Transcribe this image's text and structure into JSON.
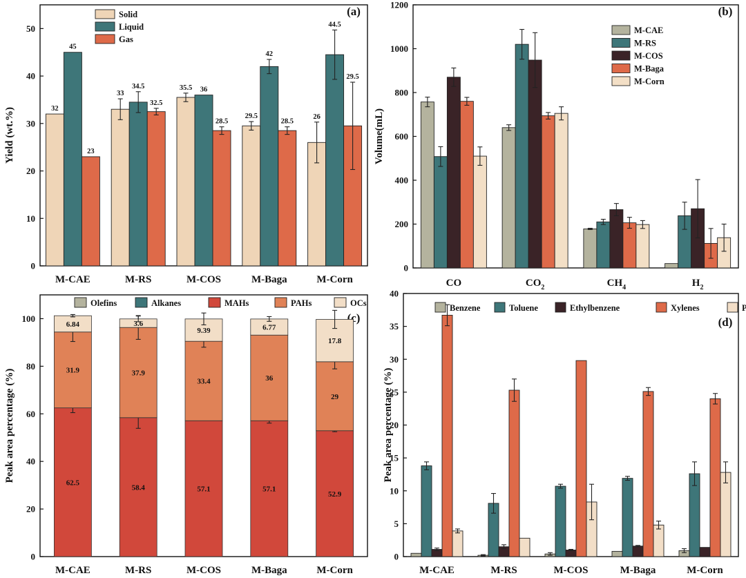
{
  "figure_title": "",
  "colors": {
    "solid": "#efd5b7",
    "liquid": "#3e7679",
    "gas": "#de6a49",
    "cae": "#b4b39e",
    "rs": "#3e7679",
    "cos": "#3a2327",
    "baga": "#de6a49",
    "corn": "#f3dfc6",
    "olefins": "#b4b39e",
    "alkanes": "#3e7679",
    "mahs": "#d1483b",
    "pahs": "#e08257",
    "ocs": "#f2dec7",
    "benzene": "#b4b39e",
    "toluene": "#3e7679",
    "ethylbenzene": "#3a2327",
    "xylenes": "#de6a49",
    "phenols": "#f2dec7",
    "axis": "#111111",
    "error": "#222222"
  },
  "chart_data": [
    {
      "id": "a",
      "panel_label": "(a)",
      "type": "bar",
      "title": "",
      "xlabel": "",
      "ylabel": "Yield (wt.%)",
      "ylim": [
        0,
        55
      ],
      "yticks": [
        "0",
        "10",
        "20",
        "30",
        "40",
        "50"
      ],
      "ytick_values": [
        0,
        10,
        20,
        30,
        40,
        50
      ],
      "categories": [
        "M-CAE",
        "M-RS",
        "M-COS",
        "M-Baga",
        "M-Corn"
      ],
      "legend_position": "top-center",
      "series": [
        {
          "name": "Solid",
          "color_key": "solid",
          "values": [
            32,
            33,
            35.5,
            29.5,
            26
          ],
          "errors": [
            0,
            2.2,
            0.9,
            0.9,
            4.3
          ],
          "labels": [
            "32",
            "33",
            "35.5",
            "29.5",
            "26"
          ]
        },
        {
          "name": "Liquid",
          "color_key": "liquid",
          "values": [
            45,
            34.5,
            36,
            42,
            44.5
          ],
          "errors": [
            0,
            2.2,
            0,
            1.5,
            5.2
          ],
          "labels": [
            "45",
            "34.5",
            "36",
            "42",
            "44.5"
          ]
        },
        {
          "name": "Gas",
          "color_key": "gas",
          "values": [
            23,
            32.5,
            28.5,
            28.5,
            29.5
          ],
          "errors": [
            0,
            0.7,
            0.8,
            0.8,
            9.2
          ],
          "labels": [
            "23",
            "32.5",
            "28.5",
            "28.5",
            "29.5"
          ]
        }
      ]
    },
    {
      "id": "b",
      "panel_label": "(b)",
      "type": "bar",
      "title": "",
      "xlabel": "",
      "ylabel": "Volume(mL)",
      "ylim": [
        0,
        1200
      ],
      "yticks": [
        "0",
        "200",
        "400",
        "600",
        "800",
        "1000",
        "1200"
      ],
      "ytick_values": [
        0,
        200,
        400,
        600,
        800,
        1000,
        1200
      ],
      "categories": [
        {
          "base": "CO",
          "sub": ""
        },
        {
          "base": "CO",
          "sub": "2"
        },
        {
          "base": "CH",
          "sub": "4"
        },
        {
          "base": "H",
          "sub": "2"
        }
      ],
      "legend_position": "top-right",
      "series": [
        {
          "name": "M-CAE",
          "color_key": "cae",
          "values": [
            757,
            640,
            178,
            20
          ],
          "errors": [
            22,
            13,
            3,
            0
          ]
        },
        {
          "name": "M-RS",
          "color_key": "rs",
          "values": [
            508,
            1020,
            210,
            238
          ],
          "errors": [
            45,
            68,
            12,
            62
          ]
        },
        {
          "name": "M-COS",
          "color_key": "cos",
          "values": [
            870,
            948,
            266,
            270
          ],
          "errors": [
            42,
            125,
            28,
            133
          ]
        },
        {
          "name": "M-Baga",
          "color_key": "baga",
          "values": [
            760,
            694,
            206,
            112
          ],
          "errors": [
            18,
            15,
            25,
            68
          ]
        },
        {
          "name": "M-Corn",
          "color_key": "corn",
          "values": [
            510,
            705,
            198,
            138
          ],
          "errors": [
            42,
            30,
            18,
            62
          ]
        }
      ]
    },
    {
      "id": "c",
      "panel_label": "(c)",
      "type": "stacked-bar",
      "title": "",
      "xlabel": "",
      "ylabel": "Peak area percentage (%)",
      "ylim": [
        0,
        110
      ],
      "yticks": [
        "0",
        "20",
        "40",
        "60",
        "80",
        "100"
      ],
      "ytick_values": [
        0,
        20,
        40,
        60,
        80,
        100
      ],
      "categories": [
        "M-CAE",
        "M-RS",
        "M-COS",
        "M-Baga",
        "M-Corn"
      ],
      "legend_position": "top",
      "series": [
        {
          "name": "Olefins",
          "color_key": "olefins",
          "values": [
            0,
            0,
            0,
            0,
            0
          ]
        },
        {
          "name": "Alkanes",
          "color_key": "alkanes",
          "values": [
            0,
            0,
            0,
            0,
            0
          ]
        },
        {
          "name": "MAHs",
          "color_key": "mahs",
          "values": [
            62.5,
            58.4,
            57.1,
            57.1,
            52.9
          ],
          "errors": [
            2.0,
            4.5,
            0,
            1.0,
            0.4
          ],
          "labels": [
            "62.5",
            "58.4",
            "57.1",
            "57.1",
            "52.9"
          ],
          "label_color": "#f5e6d6"
        },
        {
          "name": "PAHs",
          "color_key": "pahs",
          "values": [
            31.9,
            37.9,
            33.4,
            36,
            29
          ],
          "errors": [
            4.0,
            5.0,
            2.5,
            0,
            3.0
          ],
          "labels": [
            "31.9",
            "37.9",
            "33.4",
            "36",
            "29"
          ],
          "label_color": "#111111"
        },
        {
          "name": "OCs",
          "color_key": "ocs",
          "values": [
            6.84,
            3.6,
            9.39,
            6.77,
            17.8
          ],
          "errors": [
            0.5,
            1.2,
            2.5,
            1.0,
            3.8
          ],
          "labels": [
            "6.84",
            "3.6",
            "9.39",
            "6.77",
            "17.8"
          ],
          "label_color": "#111111"
        }
      ]
    },
    {
      "id": "d",
      "panel_label": "(d)",
      "type": "bar",
      "title": "",
      "xlabel": "",
      "ylabel": "Peak area percentage (%)",
      "ylim": [
        0,
        40
      ],
      "yticks": [
        "0",
        "5",
        "10",
        "15",
        "20",
        "25",
        "30",
        "35",
        "40"
      ],
      "ytick_values": [
        0,
        5,
        10,
        15,
        20,
        25,
        30,
        35,
        40
      ],
      "categories": [
        "M-CAE",
        "M-RS",
        "M-COS",
        "M-Baga",
        "M-Corn"
      ],
      "legend_position": "top",
      "series": [
        {
          "name": "Benzene",
          "color_key": "benzene",
          "values": [
            0.5,
            0.2,
            0.4,
            0.8,
            0.9
          ],
          "errors": [
            0,
            0.1,
            0.2,
            0,
            0.3
          ]
        },
        {
          "name": "Toluene",
          "color_key": "toluene",
          "values": [
            13.8,
            8.1,
            10.7,
            11.9,
            12.6
          ],
          "errors": [
            0.6,
            1.5,
            0.3,
            0.3,
            1.8
          ]
        },
        {
          "name": "Ethylbenzene",
          "color_key": "ethylbenzene",
          "values": [
            1.1,
            1.5,
            1.0,
            1.6,
            1.4
          ],
          "errors": [
            0.2,
            0.3,
            0.1,
            0.1,
            0
          ]
        },
        {
          "name": "Xylenes",
          "color_key": "xylenes",
          "values": [
            36.7,
            25.3,
            29.8,
            25.1,
            24.0
          ],
          "errors": [
            1.6,
            1.7,
            0,
            0.6,
            0.8
          ]
        },
        {
          "name": "Phenols",
          "color_key": "phenols",
          "values": [
            3.9,
            2.8,
            8.3,
            4.8,
            12.8
          ],
          "errors": [
            0.3,
            0,
            2.7,
            0.6,
            1.6
          ]
        }
      ]
    }
  ]
}
